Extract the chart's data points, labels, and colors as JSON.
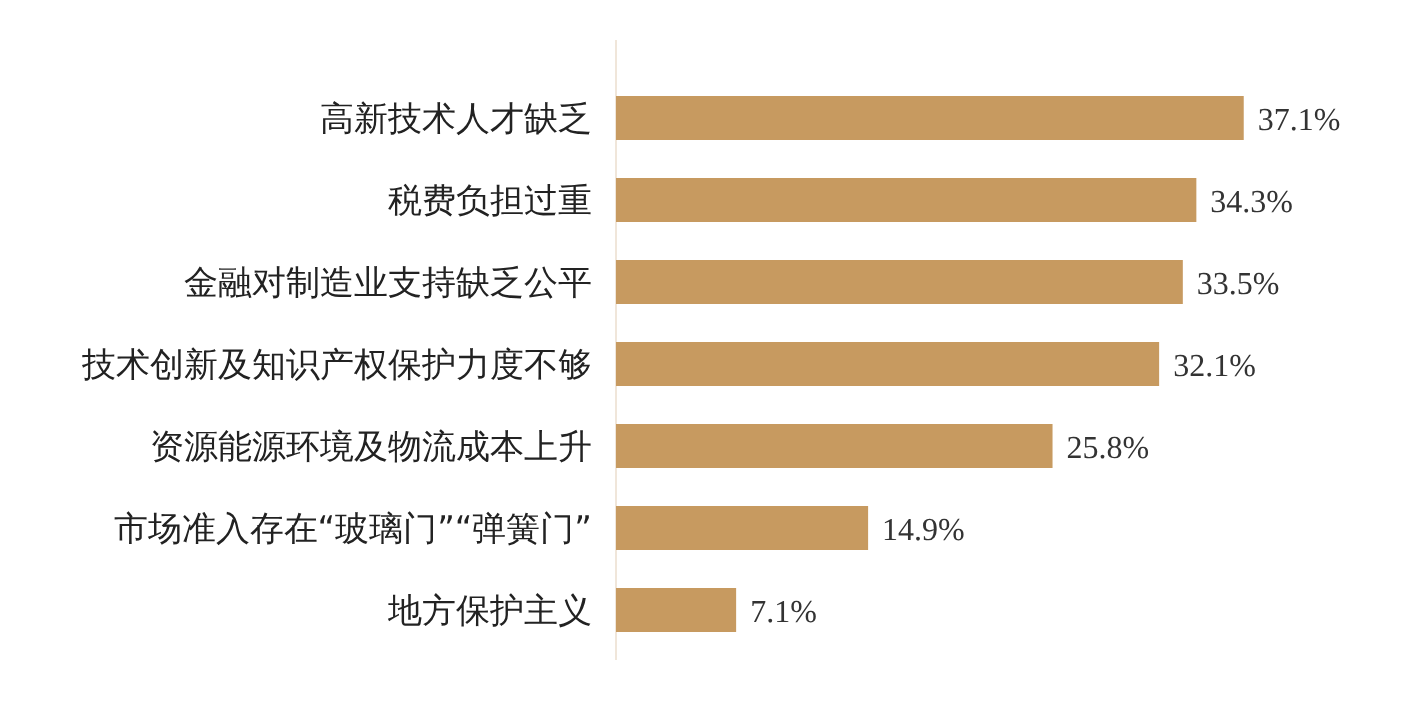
{
  "chart_data": {
    "type": "bar",
    "orientation": "horizontal",
    "categories": [
      "高新技术人才缺乏",
      "税费负担过重",
      "金融对制造业支持缺乏公平",
      "技术创新及知识产权保护力度不够",
      "资源能源环境及物流成本上升",
      "市场准入存在“玻璃门”“弹簧门”",
      "地方保护主义"
    ],
    "values": [
      37.1,
      34.3,
      33.5,
      32.1,
      25.8,
      14.9,
      7.1
    ],
    "value_labels": [
      "37.1%",
      "34.3%",
      "33.5%",
      "32.1%",
      "25.8%",
      "14.9%",
      "7.1%"
    ],
    "color": "#c79a60"
  }
}
